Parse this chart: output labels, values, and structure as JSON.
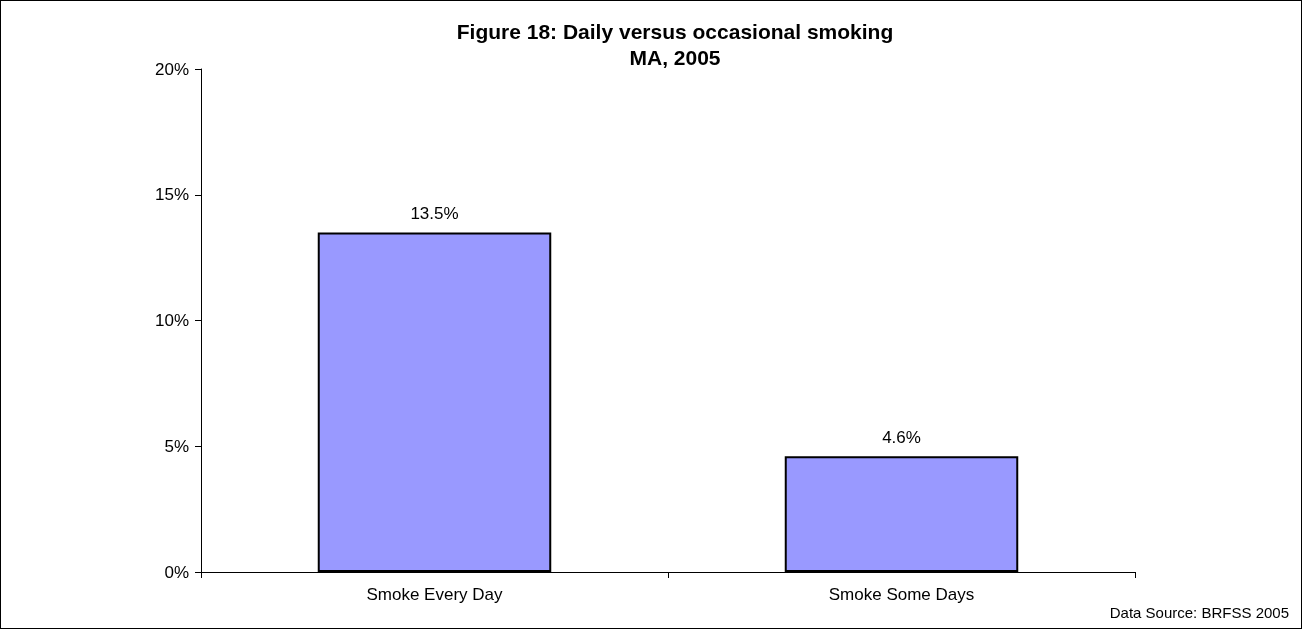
{
  "chart_data": {
    "type": "bar",
    "title": "Figure 18: Daily versus occasional smoking\nMA, 2005",
    "categories": [
      "Smoke Every Day",
      "Smoke Some Days"
    ],
    "values": [
      13.5,
      4.6
    ],
    "value_labels": [
      "13.5%",
      "4.6%"
    ],
    "color": "#9999ff",
    "ylim": [
      0,
      20
    ],
    "yticks": [
      {
        "value": 0,
        "label": "0%"
      },
      {
        "value": 5,
        "label": "5%"
      },
      {
        "value": 10,
        "label": "10%"
      },
      {
        "value": 15,
        "label": "15%"
      },
      {
        "value": 20,
        "label": "20%"
      }
    ],
    "grid": false,
    "annotations": [
      "Data Source: BRFSS 2005"
    ]
  }
}
